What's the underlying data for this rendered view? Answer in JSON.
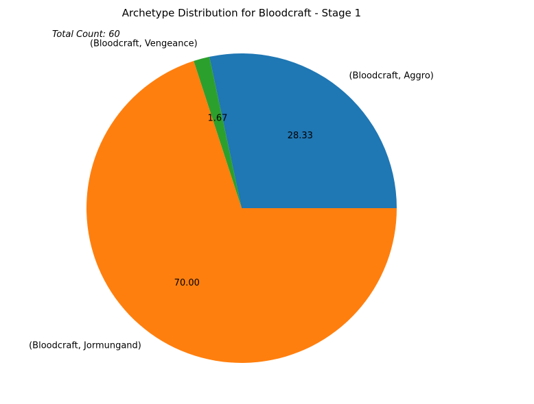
{
  "chart_data": {
    "type": "pie",
    "title": "Archetype Distribution for Bloodcraft - Stage 1",
    "annotation": "Total Count: 60",
    "slices": [
      {
        "label": "(Bloodcraft, Aggro)",
        "value": 28.33,
        "pct_label": "28.33",
        "color": "#1f77b4"
      },
      {
        "label": "(Bloodcraft, Vengeance)",
        "value": 1.67,
        "pct_label": "1.67",
        "color": "#2ca02c"
      },
      {
        "label": "(Bloodcraft, Jormungand)",
        "value": 70.0,
        "pct_label": "70.00",
        "color": "#ff7f0e"
      }
    ],
    "start_angle_deg": 0,
    "direction": "counterclockwise"
  }
}
